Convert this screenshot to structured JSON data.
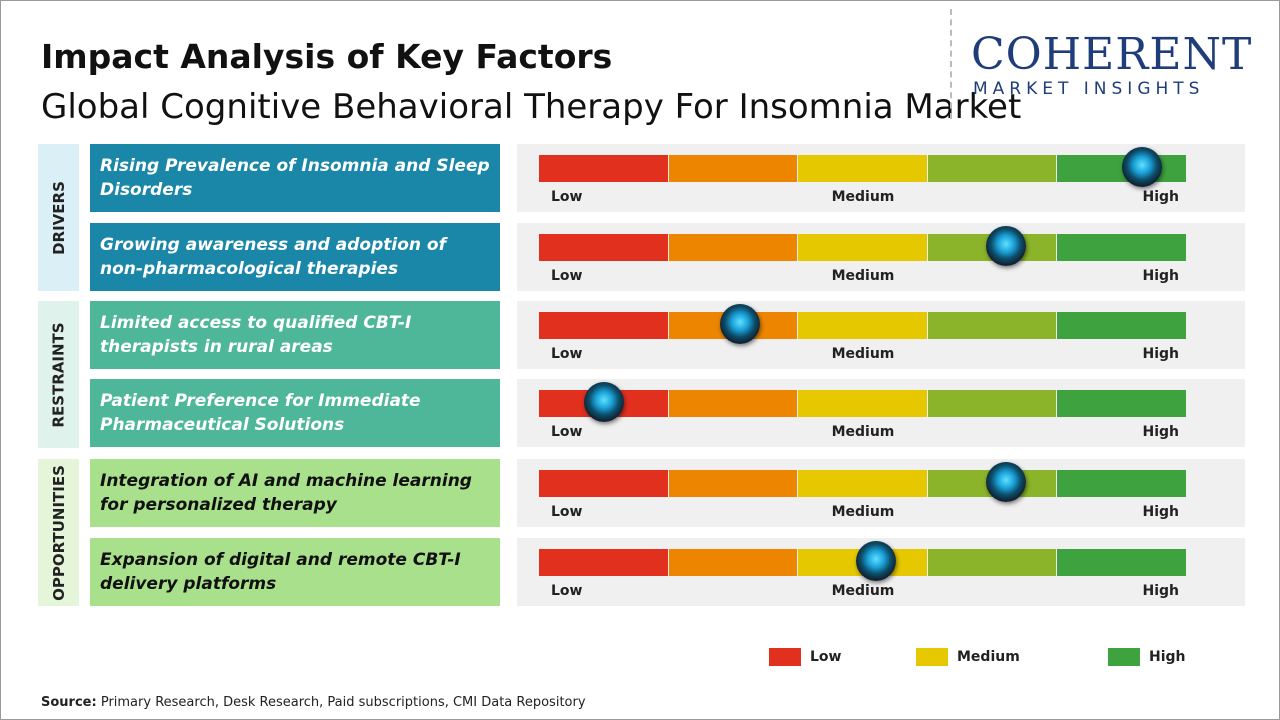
{
  "header": {
    "title": "Impact Analysis of Key Factors",
    "subtitle": "Global Cognitive Behavioral Therapy For Insomnia Market"
  },
  "logo": {
    "name": "COHERENT",
    "tagline": "MARKET INSIGHTS"
  },
  "scale": {
    "labels": [
      "Low",
      "Medium",
      "High"
    ],
    "xlim": [
      0,
      100
    ],
    "segment_colors": [
      "#e2301f",
      "#ee8500",
      "#e6c800",
      "#8cb42a",
      "#3ea33f"
    ]
  },
  "groups": [
    {
      "label": "DRIVERS",
      "color": "#1a87a8",
      "label_bg": "#dbeff7",
      "text_color": "#ffffff",
      "items": [
        {
          "text": "Rising Prevalence of Insomnia and Sleep Disorders",
          "value": 93
        },
        {
          "text": "Growing awareness and adoption of non-pharmacological therapies",
          "value": 72
        }
      ]
    },
    {
      "label": "RESTRAINTS",
      "color": "#4fb799",
      "label_bg": "#dff2ec",
      "text_color": "#ffffff",
      "items": [
        {
          "text": "Limited access to qualified CBT-I therapists in rural areas",
          "value": 31
        },
        {
          "text": "Patient Preference for Immediate Pharmaceutical Solutions",
          "value": 10
        }
      ]
    },
    {
      "label": "OPPORTUNITIES",
      "color": "#a9e08c",
      "label_bg": "#e5f5da",
      "text_color": "#111111",
      "items": [
        {
          "text": "Integration of AI and machine learning for personalized therapy",
          "value": 72
        },
        {
          "text": "Expansion of digital and remote CBT-I delivery platforms",
          "value": 52
        }
      ]
    }
  ],
  "legend": [
    {
      "label": "Low",
      "color": "#e2301f"
    },
    {
      "label": "Medium",
      "color": "#e6c800"
    },
    {
      "label": "High",
      "color": "#3ea33f"
    }
  ],
  "source": {
    "label": "Source:",
    "text": "Primary Research, Desk Research, Paid subscriptions, CMI Data Repository"
  }
}
